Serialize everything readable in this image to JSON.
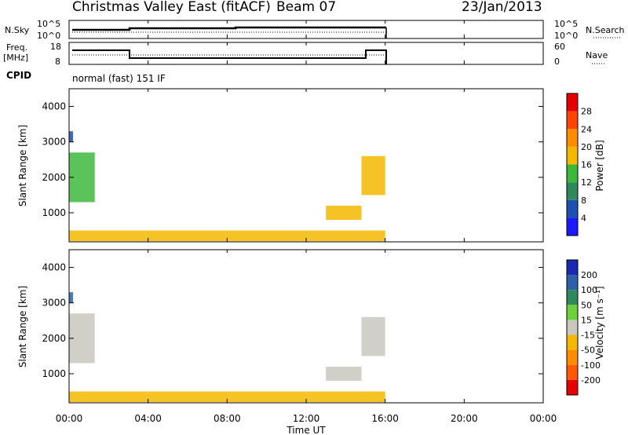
{
  "header": {
    "title": "Christmas Valley East (fitACF)",
    "beam": "Beam 07",
    "date": "23/Jan/2013",
    "mode": "normal (fast) 151 IF"
  },
  "side_labels": {
    "nsky": "N.Sky",
    "freq": "Freq.",
    "freq_unit": "[MHz]",
    "cpid": "CPID",
    "nsearch": "N.Search",
    "nave": "Nave"
  },
  "top_panels": {
    "nsky_ticks": [
      "10^5",
      "10^0"
    ],
    "nsearch_ticks": [
      "10^5",
      "10^0"
    ],
    "freq_ticks": [
      "18",
      "8"
    ],
    "nave_ticks": [
      "60",
      "0"
    ]
  },
  "axes": {
    "xlabel": "Time UT",
    "ylabel": "Slant Range [km]",
    "x_ticks": [
      "00:00",
      "04:00",
      "08:00",
      "12:00",
      "16:00",
      "20:00",
      "00:00"
    ],
    "y_ticks": [
      "1000",
      "2000",
      "3000",
      "4000"
    ]
  },
  "power_scale": {
    "label": "Power [dB]",
    "ticks": [
      "4",
      "8",
      "12",
      "16",
      "20",
      "24",
      "28"
    ],
    "colors": [
      "#1a1aff",
      "#1f4fb0",
      "#2e8a5a",
      "#3db83d",
      "#f5b800",
      "#ff8c00",
      "#ff4500",
      "#e60000"
    ]
  },
  "velocity_scale": {
    "label": "Velocity [m s⁻¹]",
    "ticks": [
      "200",
      "100",
      "50",
      "15",
      "-15",
      "-50",
      "-100",
      "-200"
    ],
    "colors": [
      "#1a2ab0",
      "#2e5fa8",
      "#2e8a5a",
      "#6ecf3a",
      "#c8c8c0",
      "#f5b800",
      "#ff8c00",
      "#ff5a00",
      "#e60000"
    ]
  },
  "chart_data": [
    {
      "type": "heatmap",
      "title": "",
      "xlabel": "Time UT",
      "ylabel": "Slant Range [km]",
      "xlim": [
        0,
        24
      ],
      "ylim": [
        180,
        4500
      ],
      "colorbar": "Power [dB]",
      "regions": [
        {
          "t0": 0.0,
          "t1": 1.3,
          "r0": 1300,
          "r1": 2700,
          "value": 14
        },
        {
          "t0": 0.0,
          "t1": 0.2,
          "r0": 3000,
          "r1": 3300,
          "value": 6
        },
        {
          "t0": 0.0,
          "t1": 16.0,
          "r0": 200,
          "r1": 500,
          "value": 18
        },
        {
          "t0": 13.0,
          "t1": 14.8,
          "r0": 800,
          "r1": 1200,
          "value": 18
        },
        {
          "t0": 14.8,
          "t1": 16.0,
          "r0": 1500,
          "r1": 2600,
          "value": 16
        }
      ]
    },
    {
      "type": "heatmap",
      "title": "",
      "xlabel": "Time UT",
      "ylabel": "Slant Range [km]",
      "xlim": [
        0,
        24
      ],
      "ylim": [
        180,
        4500
      ],
      "colorbar": "Velocity [m s⁻¹]",
      "regions": [
        {
          "t0": 0.0,
          "t1": 1.3,
          "r0": 1300,
          "r1": 2700,
          "value": 0
        },
        {
          "t0": 0.0,
          "t1": 0.2,
          "r0": 3000,
          "r1": 3300,
          "value": 150
        },
        {
          "t0": 0.0,
          "t1": 16.0,
          "r0": 200,
          "r1": 500,
          "value": -30
        },
        {
          "t0": 13.0,
          "t1": 14.8,
          "r0": 800,
          "r1": 1200,
          "value": 0
        },
        {
          "t0": 14.8,
          "t1": 16.0,
          "r0": 1500,
          "r1": 2600,
          "value": 0
        }
      ]
    }
  ]
}
